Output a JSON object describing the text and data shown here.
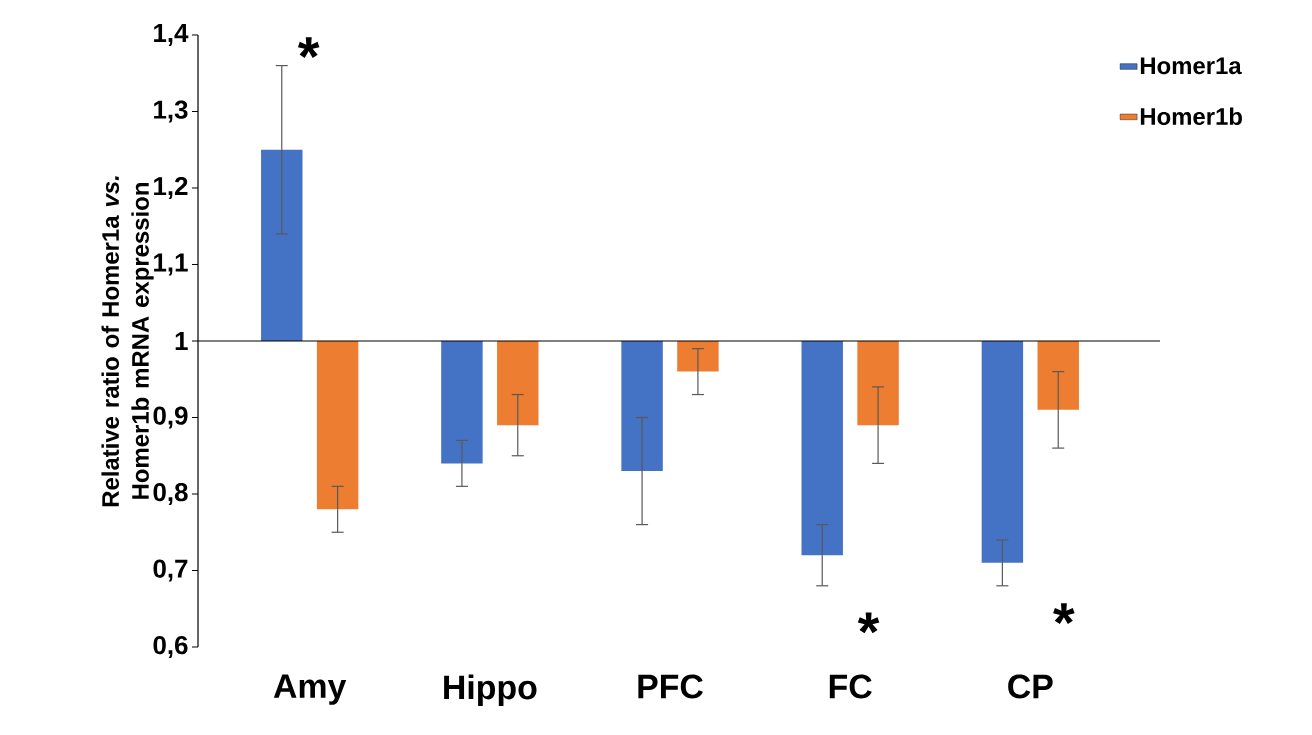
{
  "chart_data": {
    "type": "bar",
    "ylabel": "Relative ratio of Homer1a *vs.* Homer1b mRNA expression",
    "categories": [
      "Amy",
      "Hippo",
      "PFC",
      "FC",
      "CP"
    ],
    "series": [
      {
        "name": "Homer1a",
        "color": "#4472c4",
        "base": [
          1,
          1,
          1,
          1,
          1
        ],
        "values": [
          0.25,
          -0.16,
          -0.17,
          -0.28,
          -0.29
        ],
        "errors": [
          0.11,
          0.03,
          0.07,
          0.04,
          0.03
        ]
      },
      {
        "name": "Homer1b",
        "color": "#ed7d31",
        "base": [
          1,
          1,
          1,
          1,
          1
        ],
        "values": [
          -0.22,
          -0.11,
          -0.04,
          -0.11,
          -0.09
        ],
        "errors": [
          0.03,
          0.04,
          0.03,
          0.05,
          0.05
        ]
      }
    ],
    "ref_lines": [
      {
        "axis": "y",
        "value": 1
      }
    ],
    "ylim": [
      0.6,
      1.4
    ],
    "yticks": [
      {
        "value": 0.6,
        "label": "0,6"
      },
      {
        "value": 0.7,
        "label": "0,7"
      },
      {
        "value": 0.8,
        "label": "0,8"
      },
      {
        "value": 0.9,
        "label": "0,9"
      },
      1,
      {
        "value": 1.1,
        "label": "1,1"
      },
      {
        "value": 1.2,
        "label": "1,2"
      },
      {
        "value": 1.3,
        "label": "1,3"
      },
      {
        "value": 1.4,
        "label": "1,4"
      }
    ],
    "annotations": [
      "*",
      "*",
      "*"
    ],
    "legend": "top right"
  }
}
